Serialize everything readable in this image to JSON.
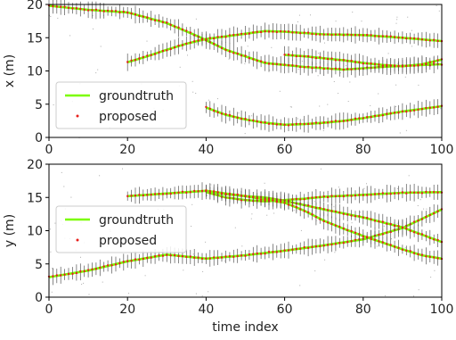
{
  "chart_data": [
    {
      "type": "line",
      "ylabel": "x (m)",
      "xlabel": "",
      "xlim": [
        0,
        100
      ],
      "ylim": [
        0,
        20
      ],
      "xticks": [
        0,
        20,
        40,
        60,
        80,
        100
      ],
      "yticks": [
        0,
        5,
        10,
        15,
        20
      ],
      "legend": {
        "placement": "lower-left",
        "entries": [
          "groundtruth",
          "proposed"
        ]
      },
      "colors": {
        "groundtruth": "#7cfc00",
        "proposed": "#e8201c",
        "errorbars": "#555555",
        "clutter": "#777777"
      },
      "series": [
        {
          "tracks": [
            {
              "x": [
                0,
                10,
                20,
                30,
                38,
                45,
                55,
                65,
                75,
                85,
                95,
                100
              ],
              "y": [
                19.8,
                19.2,
                18.8,
                17.2,
                15.2,
                13.2,
                11.2,
                10.6,
                10.2,
                10.6,
                10.9,
                11.0
              ]
            },
            {
              "x": [
                20,
                25,
                30,
                35,
                40,
                45,
                50,
                55,
                60,
                70,
                80,
                90,
                100
              ],
              "y": [
                11.3,
                12.2,
                13.2,
                14.1,
                14.8,
                15.2,
                15.6,
                16.0,
                15.9,
                15.5,
                15.4,
                15.0,
                14.5
              ]
            },
            {
              "x": [
                60,
                65,
                70,
                75,
                80,
                85,
                90,
                95,
                100
              ],
              "y": [
                12.4,
                12.2,
                11.9,
                11.6,
                11.2,
                10.9,
                10.7,
                11.0,
                11.7
              ]
            },
            {
              "x": [
                40,
                45,
                50,
                55,
                60,
                65,
                70,
                75,
                80,
                85,
                90,
                95,
                100
              ],
              "y": [
                4.5,
                3.4,
                2.7,
                2.2,
                1.9,
                2.0,
                2.2,
                2.5,
                2.9,
                3.4,
                3.9,
                4.3,
                4.7
              ]
            }
          ]
        }
      ]
    },
    {
      "type": "line",
      "ylabel": "y (m)",
      "xlabel": "time index",
      "xlim": [
        0,
        100
      ],
      "ylim": [
        0,
        20
      ],
      "xticks": [
        0,
        20,
        40,
        60,
        80,
        100
      ],
      "yticks": [
        0,
        5,
        10,
        15,
        20
      ],
      "legend": {
        "placement": "center-left",
        "entries": [
          "groundtruth",
          "proposed"
        ]
      },
      "colors": {
        "groundtruth": "#7cfc00",
        "proposed": "#e8201c",
        "errorbars": "#555555",
        "clutter": "#777777"
      },
      "series": [
        {
          "tracks": [
            {
              "x": [
                0,
                10,
                20,
                30,
                40,
                50,
                60,
                70,
                80,
                90,
                100
              ],
              "y": [
                3.0,
                4.0,
                5.4,
                6.4,
                5.8,
                6.3,
                7.0,
                7.8,
                8.7,
                10.4,
                13.2
              ]
            },
            {
              "x": [
                20,
                30,
                40,
                45,
                50,
                55,
                60,
                70,
                80,
                90,
                100
              ],
              "y": [
                15.2,
                15.6,
                16.0,
                15.5,
                15.2,
                15.0,
                14.5,
                13.2,
                12.0,
                10.5,
                8.3
              ]
            },
            {
              "x": [
                40,
                45,
                50,
                55,
                60,
                65,
                70,
                80,
                90,
                100
              ],
              "y": [
                15.8,
                15.0,
                14.6,
                14.4,
                14.6,
                14.8,
                15.1,
                15.4,
                15.7,
                15.8
              ]
            },
            {
              "x": [
                40,
                50,
                60,
                65,
                70,
                75,
                80,
                85,
                90,
                95,
                100
              ],
              "y": [
                16.0,
                15.2,
                14.2,
                13.0,
                11.5,
                10.3,
                9.2,
                8.2,
                7.2,
                6.3,
                5.8
              ]
            }
          ]
        }
      ]
    }
  ],
  "legend_labels": {
    "groundtruth": "groundtruth",
    "proposed": "proposed"
  }
}
